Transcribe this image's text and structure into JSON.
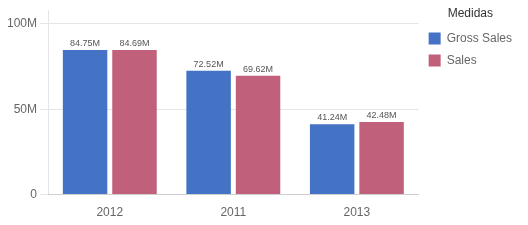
{
  "chart_data": {
    "type": "bar",
    "categories": [
      "2012",
      "2011",
      "2013"
    ],
    "series": [
      {
        "name": "Gross Sales",
        "color": "#4472C4",
        "values": [
          84.75,
          72.52,
          41.24
        ],
        "value_labels": [
          "84.75M",
          "72.52M",
          "41.24M"
        ]
      },
      {
        "name": "Sales",
        "color": "#C0607A",
        "values": [
          84.69,
          69.62,
          42.48
        ],
        "value_labels": [
          "84.69M",
          "69.62M",
          "42.48M"
        ]
      }
    ],
    "ylim": [
      0,
      108
    ],
    "yticks": [
      0,
      {
        "value": 50,
        "label": "50M"
      },
      {
        "value": 100,
        "label": "100M"
      }
    ],
    "grid": true,
    "legend": "right",
    "legend_title": "Medidas",
    "data_labels": true
  }
}
